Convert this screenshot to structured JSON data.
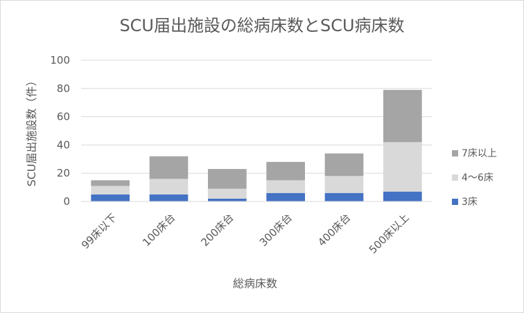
{
  "chart_data": {
    "type": "bar",
    "stacked": true,
    "title": "SCU届出施設の総病床数とSCU病床数",
    "xlabel": "総病床数",
    "ylabel": "SCU届出施設数（件）",
    "ylim": [
      0,
      100
    ],
    "yticks": [
      "0",
      "20",
      "40",
      "60",
      "80",
      "100"
    ],
    "grid": true,
    "legend_position": "right",
    "categories": [
      "99床以下",
      "100床台",
      "200床台",
      "300床台",
      "400床台",
      "500床以上"
    ],
    "series": [
      {
        "name": "3床",
        "color": "#4472c4",
        "values": [
          5,
          5,
          2,
          6,
          6,
          7
        ]
      },
      {
        "name": "4～6床",
        "color": "#d9d9d9",
        "values": [
          6,
          11,
          7,
          9,
          12,
          35
        ]
      },
      {
        "name": "7床以上",
        "color": "#a5a5a5",
        "values": [
          4,
          16,
          14,
          13,
          16,
          37
        ]
      }
    ]
  }
}
